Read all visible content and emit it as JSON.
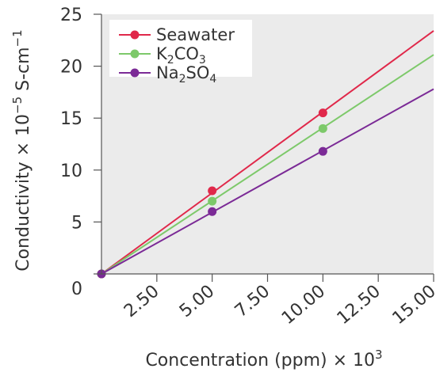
{
  "chart_data": {
    "type": "line",
    "title": "",
    "xlabel_text": "Concentration (ppm) × 10",
    "xlabel_sup": "3",
    "ylabel_pre": "Conductivity × 10",
    "ylabel_sup1": "−5",
    "ylabel_mid": " S-cm",
    "ylabel_sup2": "−1",
    "xlim": [
      0,
      15
    ],
    "ylim": [
      0,
      25
    ],
    "x_ticks": [
      2.5,
      5,
      7.5,
      10,
      12.5,
      15
    ],
    "x_tick_labels": [
      "2.50",
      "5.00",
      "7.50",
      "10.00",
      "12.50",
      "15.00"
    ],
    "y_ticks": [
      0,
      5,
      10,
      15,
      20,
      25
    ],
    "y_tick_labels": [
      "0",
      "5",
      "10",
      "15",
      "20",
      "25"
    ],
    "grid": false,
    "legend_position": "top-left",
    "series": [
      {
        "name": "Seawater",
        "name_parts": [
          [
            "Seawater",
            ""
          ]
        ],
        "color": "#e0284a",
        "line": [
          [
            0,
            0
          ],
          [
            15,
            23.4
          ]
        ],
        "points": [
          [
            0,
            0
          ],
          [
            5,
            8
          ],
          [
            10,
            15.5
          ]
        ]
      },
      {
        "name": "K2CO3",
        "name_parts": [
          [
            "K",
            ""
          ],
          [
            "2",
            "sub"
          ],
          [
            "CO",
            ""
          ],
          [
            "3",
            "sub"
          ]
        ],
        "color": "#7dc96a",
        "line": [
          [
            0,
            0
          ],
          [
            15,
            21.1
          ]
        ],
        "points": [
          [
            0,
            0
          ],
          [
            5,
            7
          ],
          [
            10,
            14
          ]
        ]
      },
      {
        "name": "Na2SO4",
        "name_parts": [
          [
            "Na",
            ""
          ],
          [
            "2",
            "sub"
          ],
          [
            "SO",
            ""
          ],
          [
            "4",
            "sub"
          ]
        ],
        "color": "#7b2a96",
        "line": [
          [
            0,
            0
          ],
          [
            15,
            17.8
          ]
        ],
        "points": [
          [
            0,
            0
          ],
          [
            5,
            6
          ],
          [
            10,
            11.8
          ]
        ]
      }
    ]
  }
}
